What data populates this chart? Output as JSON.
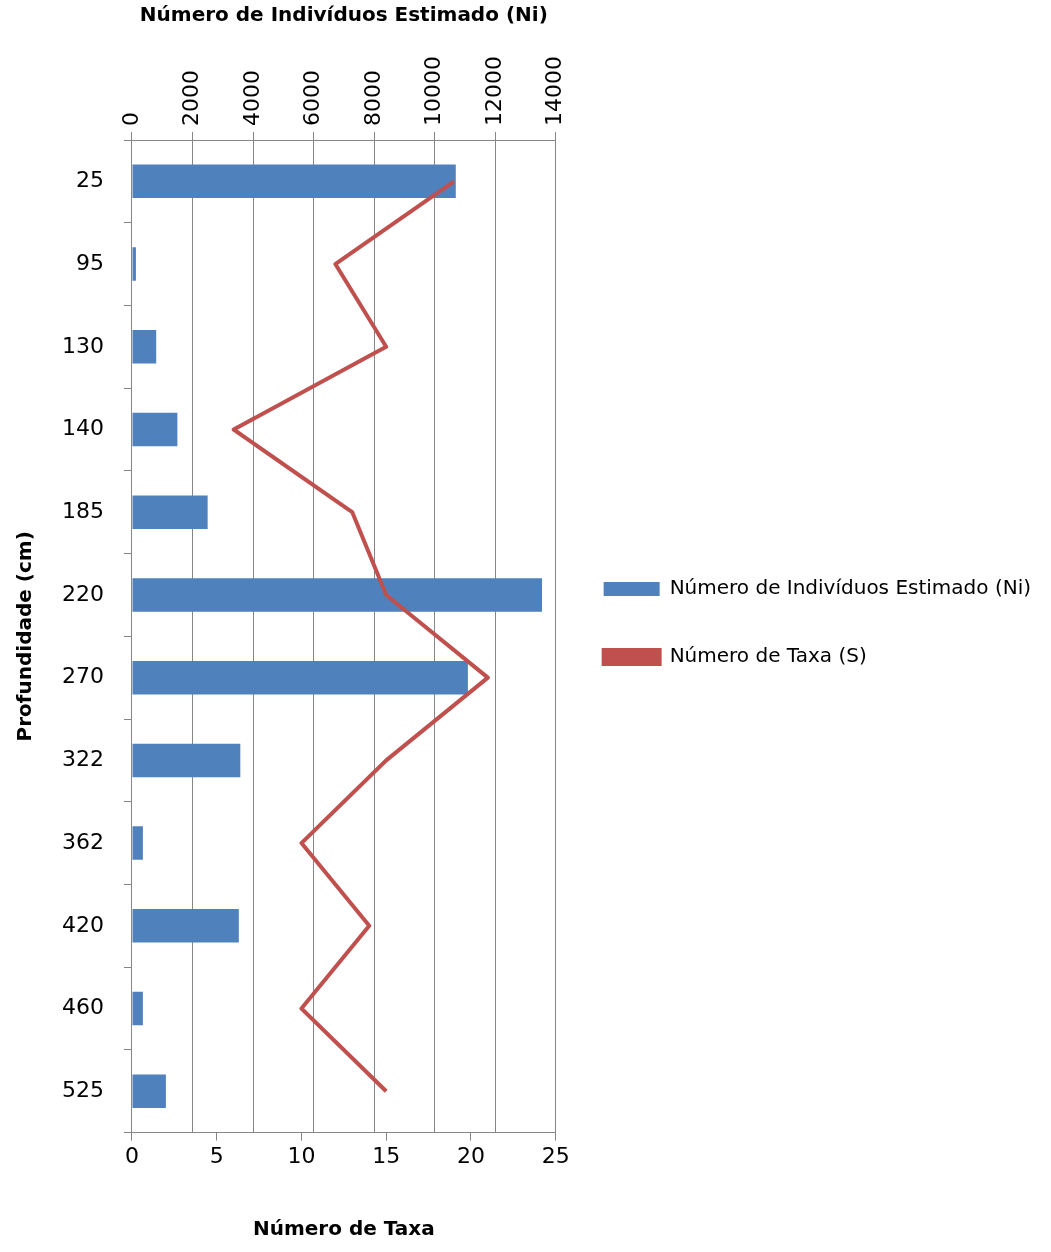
{
  "chart_data": {
    "type": "bar",
    "orientation": "horizontal",
    "categories": [
      "25",
      "95",
      "130",
      "140",
      "185",
      "220",
      "270",
      "322",
      "362",
      "420",
      "460",
      "525"
    ],
    "series": [
      {
        "name": "Número de Indivíduos Estimado (Ni)",
        "type": "bar",
        "axis": "x2",
        "color": "#4f81bd",
        "values": [
          10700,
          130,
          800,
          1500,
          2500,
          13550,
          11100,
          3580,
          360,
          3530,
          360,
          1120
        ]
      },
      {
        "name": "Número de Taxa (S)",
        "type": "line",
        "color": "#c0504d",
        "values": [
          19,
          12,
          15,
          6,
          13,
          15,
          21,
          15,
          10,
          14,
          10,
          15
        ]
      }
    ],
    "xlabel": "Número de Taxa",
    "x2label": "Número de Indivíduos Estimado (Ni)",
    "ylabel": "Profundidade (cm)",
    "xlim": [
      0,
      25
    ],
    "xticks": [
      0,
      5,
      10,
      15,
      20,
      25
    ],
    "x2lim": [
      0,
      14000
    ],
    "x2ticks": [
      0,
      2000,
      4000,
      6000,
      8000,
      10000,
      12000,
      14000
    ],
    "grid": "x",
    "legend": "right",
    "marker": "none",
    "line_style": "solid"
  }
}
